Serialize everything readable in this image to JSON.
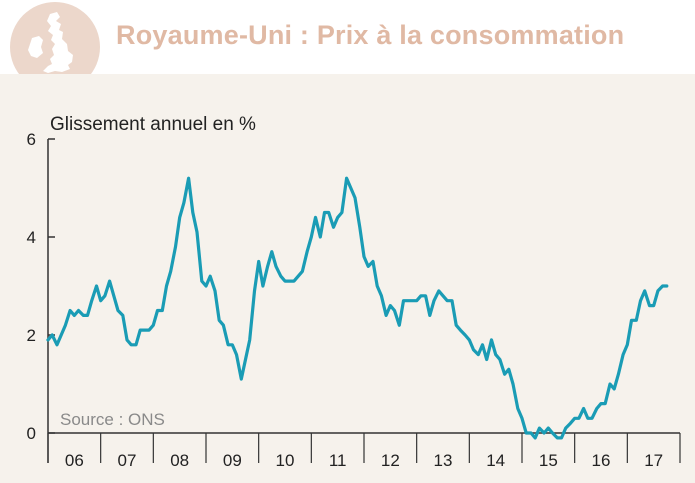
{
  "header": {
    "title": "Royaume-Uni : Prix à la consommation"
  },
  "colors": {
    "title": "#e0b9a4",
    "badge": "#ecd7cb",
    "line": "#1a9cb5",
    "panel": "#f6f2ec",
    "axis": "#333333",
    "source_text": "#8a8a8a"
  },
  "chart_data": {
    "type": "line",
    "title": "",
    "ylabel": "Glissement annuel en %",
    "xlabel": "",
    "ylim": [
      0,
      6
    ],
    "yticks": [
      "0",
      "2",
      "4",
      "6"
    ],
    "xlim": [
      2006.0,
      2018.0
    ],
    "year_labels": [
      "06",
      "07",
      "08",
      "09",
      "10",
      "11",
      "12",
      "13",
      "14",
      "15",
      "16",
      "17"
    ],
    "grid": false,
    "source": "Source : ONS",
    "series": [
      {
        "color": "#1a9cb5",
        "x": [
          2006.0,
          2006.08,
          2006.17,
          2006.25,
          2006.33,
          2006.42,
          2006.5,
          2006.58,
          2006.67,
          2006.75,
          2006.83,
          2006.92,
          2007.0,
          2007.08,
          2007.17,
          2007.25,
          2007.33,
          2007.42,
          2007.5,
          2007.58,
          2007.67,
          2007.75,
          2007.83,
          2007.92,
          2008.0,
          2008.08,
          2008.17,
          2008.25,
          2008.33,
          2008.42,
          2008.5,
          2008.58,
          2008.67,
          2008.75,
          2008.83,
          2008.92,
          2009.0,
          2009.08,
          2009.17,
          2009.25,
          2009.33,
          2009.42,
          2009.5,
          2009.58,
          2009.67,
          2009.75,
          2009.83,
          2009.92,
          2010.0,
          2010.08,
          2010.17,
          2010.25,
          2010.33,
          2010.42,
          2010.5,
          2010.58,
          2010.67,
          2010.75,
          2010.83,
          2010.92,
          2011.0,
          2011.08,
          2011.17,
          2011.25,
          2011.33,
          2011.42,
          2011.5,
          2011.58,
          2011.67,
          2011.75,
          2011.83,
          2011.92,
          2012.0,
          2012.08,
          2012.17,
          2012.25,
          2012.33,
          2012.42,
          2012.5,
          2012.58,
          2012.67,
          2012.75,
          2012.83,
          2012.92,
          2013.0,
          2013.08,
          2013.17,
          2013.25,
          2013.33,
          2013.42,
          2013.5,
          2013.58,
          2013.67,
          2013.75,
          2013.83,
          2013.92,
          2014.0,
          2014.08,
          2014.17,
          2014.25,
          2014.33,
          2014.42,
          2014.5,
          2014.58,
          2014.67,
          2014.75,
          2014.83,
          2014.92,
          2015.0,
          2015.08,
          2015.17,
          2015.25,
          2015.33,
          2015.42,
          2015.5,
          2015.58,
          2015.67,
          2015.75,
          2015.83,
          2015.92,
          2016.0,
          2016.08,
          2016.17,
          2016.25,
          2016.33,
          2016.42,
          2016.5,
          2016.58,
          2016.67,
          2016.75,
          2016.83,
          2016.92,
          2017.0,
          2017.08,
          2017.17,
          2017.25,
          2017.33,
          2017.42,
          2017.5,
          2017.58,
          2017.67,
          2017.75
        ],
        "y": [
          1.9,
          2.0,
          1.8,
          2.0,
          2.2,
          2.5,
          2.4,
          2.5,
          2.4,
          2.4,
          2.7,
          3.0,
          2.7,
          2.8,
          3.1,
          2.8,
          2.5,
          2.4,
          1.9,
          1.8,
          1.8,
          2.1,
          2.1,
          2.1,
          2.2,
          2.5,
          2.5,
          3.0,
          3.3,
          3.8,
          4.4,
          4.7,
          5.2,
          4.5,
          4.1,
          3.1,
          3.0,
          3.2,
          2.9,
          2.3,
          2.2,
          1.8,
          1.8,
          1.6,
          1.1,
          1.5,
          1.9,
          2.9,
          3.5,
          3.0,
          3.4,
          3.7,
          3.4,
          3.2,
          3.1,
          3.1,
          3.1,
          3.2,
          3.3,
          3.7,
          4.0,
          4.4,
          4.0,
          4.5,
          4.5,
          4.2,
          4.4,
          4.5,
          5.2,
          5.0,
          4.8,
          4.2,
          3.6,
          3.4,
          3.5,
          3.0,
          2.8,
          2.4,
          2.6,
          2.5,
          2.2,
          2.7,
          2.7,
          2.7,
          2.7,
          2.8,
          2.8,
          2.4,
          2.7,
          2.9,
          2.8,
          2.7,
          2.7,
          2.2,
          2.1,
          2.0,
          1.9,
          1.7,
          1.6,
          1.8,
          1.5,
          1.9,
          1.6,
          1.5,
          1.2,
          1.3,
          1.0,
          0.5,
          0.3,
          0.0,
          0.0,
          -0.1,
          0.1,
          0.0,
          0.1,
          0.0,
          -0.1,
          -0.1,
          0.1,
          0.2,
          0.3,
          0.3,
          0.5,
          0.3,
          0.3,
          0.5,
          0.6,
          0.6,
          1.0,
          0.9,
          1.2,
          1.6,
          1.8,
          2.3,
          2.3,
          2.7,
          2.9,
          2.6,
          2.6,
          2.9,
          3.0,
          3.0
        ]
      }
    ]
  }
}
